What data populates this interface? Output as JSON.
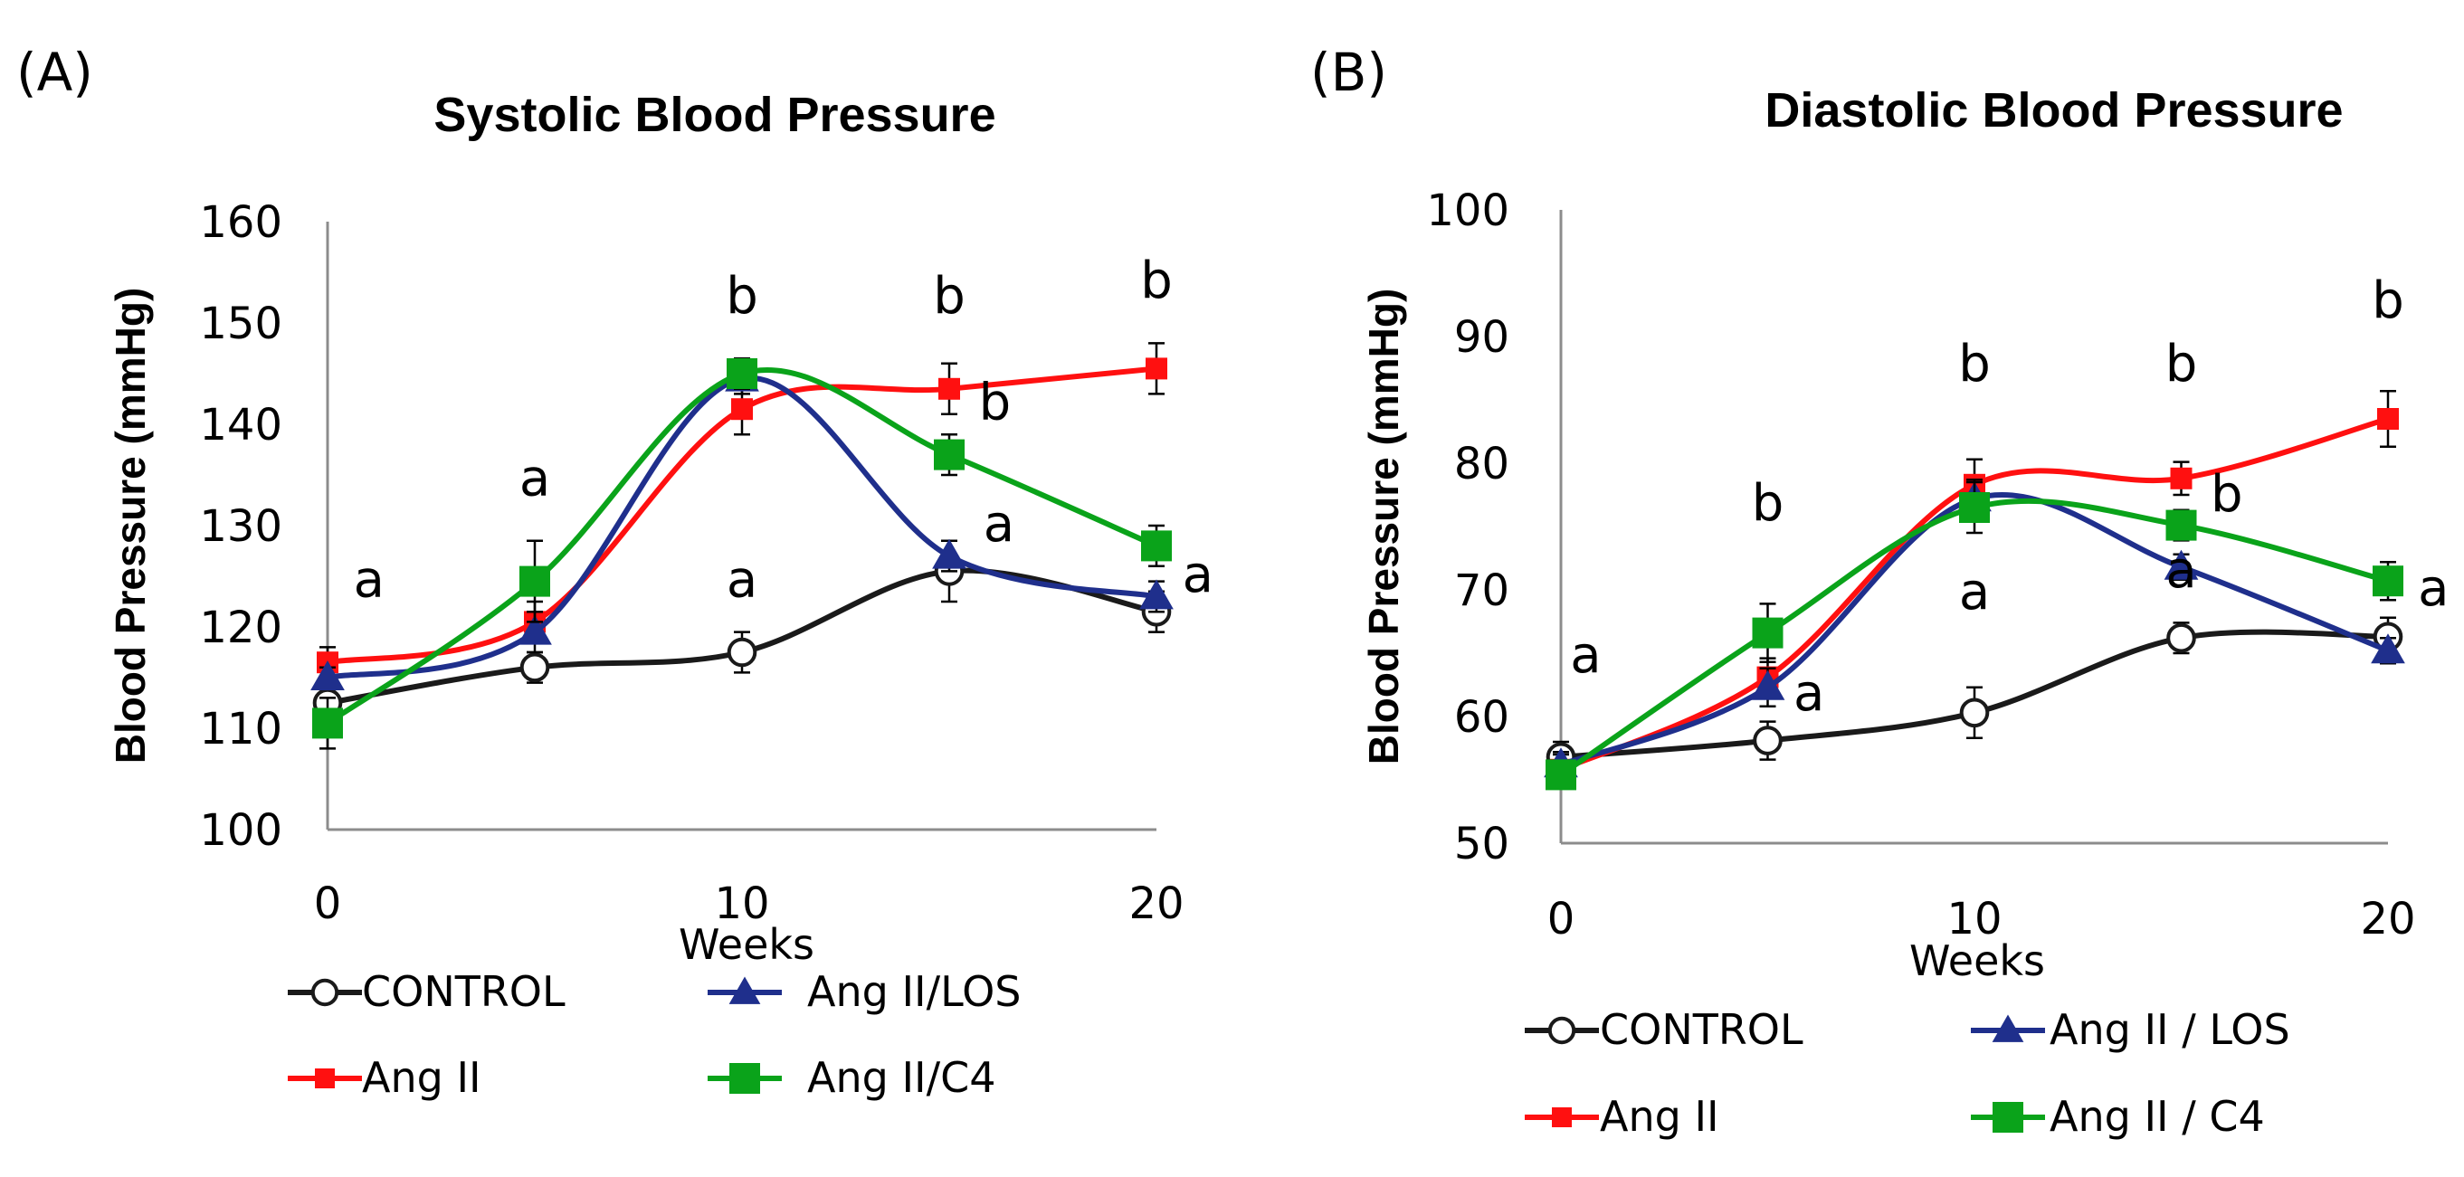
{
  "chart_data": [
    {
      "panel_label": "(A)",
      "type": "line",
      "title": "Systolic Blood Pressure",
      "xlabel": "Weeks",
      "ylabel": "Blood Pressure (mmHg)",
      "xlim": [
        0,
        20
      ],
      "ylim": [
        100,
        160
      ],
      "xticks": [
        0,
        10,
        20
      ],
      "yticks": [
        100,
        110,
        120,
        130,
        140,
        150,
        160
      ],
      "x": [
        0,
        5,
        10,
        15,
        20
      ],
      "series": [
        {
          "name": "CONTROL",
          "color": "#1a1a1a",
          "marker": "circle-open",
          "values": [
            112.5,
            116,
            117.5,
            125.5,
            121.5
          ],
          "errors": [
            1.5,
            1.5,
            2,
            3,
            2
          ]
        },
        {
          "name": "Ang II",
          "color": "#ff1010",
          "marker": "square",
          "values": [
            116.5,
            120.5,
            141.5,
            143.5,
            145.5
          ],
          "errors": [
            1.5,
            2,
            2.5,
            2.5,
            2.5
          ]
        },
        {
          "name": "Ang II/LOS",
          "color": "#1f2f8c",
          "marker": "triangle",
          "values": [
            115,
            119.5,
            144.5,
            127,
            123
          ],
          "errors": [
            1,
            2,
            1.5,
            1.5,
            1.5
          ]
        },
        {
          "name": "Ang II/C4",
          "color": "#0aa31a",
          "marker": "square",
          "values": [
            110.5,
            124.5,
            145,
            137,
            128
          ],
          "errors": [
            2.5,
            4,
            1.5,
            2,
            2
          ]
        }
      ],
      "annotations": [
        {
          "text": "a",
          "x": 1,
          "y": 123
        },
        {
          "text": "a",
          "x": 5,
          "y": 133
        },
        {
          "text": "b",
          "x": 10,
          "y": 151
        },
        {
          "text": "a",
          "x": 10,
          "y": 123
        },
        {
          "text": "b",
          "x": 15,
          "y": 151
        },
        {
          "text": "b",
          "x": 16.1,
          "y": 140.5
        },
        {
          "text": "a",
          "x": 16.2,
          "y": 128.5
        },
        {
          "text": "b",
          "x": 20,
          "y": 152.5
        },
        {
          "text": "a",
          "x": 21,
          "y": 123.5
        }
      ],
      "legend": [
        {
          "name": "CONTROL",
          "color": "#1a1a1a",
          "marker": "circle-open"
        },
        {
          "name": "Ang II/LOS",
          "color": "#1f2f8c",
          "marker": "triangle"
        },
        {
          "name": "Ang II",
          "color": "#ff1010",
          "marker": "square"
        },
        {
          "name": "Ang II/C4",
          "color": "#0aa31a",
          "marker": "square"
        }
      ]
    },
    {
      "panel_label": "(B)",
      "type": "line",
      "title": "Diastolic Blood Pressure",
      "xlabel": "Weeks",
      "ylabel": "Blood Pressure (mmHg)",
      "xlim": [
        0,
        20
      ],
      "ylim": [
        50,
        100
      ],
      "xticks": [
        0,
        10,
        20
      ],
      "yticks": [
        50,
        60,
        70,
        80,
        90,
        100
      ],
      "x": [
        0,
        5,
        10,
        15,
        20
      ],
      "series": [
        {
          "name": "CONTROL",
          "color": "#1a1a1a",
          "marker": "circle-open",
          "values": [
            56.8,
            58.1,
            60.3,
            66.2,
            66.3
          ],
          "errors": [
            1.2,
            1.5,
            2,
            1.2,
            1.5
          ]
        },
        {
          "name": "Ang II",
          "color": "#ff1010",
          "marker": "square",
          "values": [
            55.8,
            63.1,
            78.3,
            78.8,
            83.5
          ],
          "errors": [
            1.2,
            1.5,
            2,
            1.3,
            2.2
          ]
        },
        {
          "name": "Ang II / LOS",
          "color": "#1f2f8c",
          "marker": "triangle",
          "values": [
            56.2,
            62.3,
            77.2,
            71.8,
            65.2
          ],
          "errors": [
            1,
            1.5,
            1.5,
            1,
            1
          ]
        },
        {
          "name": "Ang II / C4",
          "color": "#0aa31a",
          "marker": "square",
          "values": [
            55.4,
            66.6,
            76.5,
            75.1,
            70.7
          ],
          "errors": [
            1,
            2.3,
            2,
            1.2,
            1.5
          ]
        }
      ],
      "annotations": [
        {
          "text": "a",
          "x": 0.6,
          "y": 63.5
        },
        {
          "text": "b",
          "x": 5,
          "y": 75.5
        },
        {
          "text": "a",
          "x": 6,
          "y": 60.5
        },
        {
          "text": "b",
          "x": 10,
          "y": 86.5
        },
        {
          "text": "a",
          "x": 10,
          "y": 68.5
        },
        {
          "text": "b",
          "x": 15,
          "y": 86.5
        },
        {
          "text": "b",
          "x": 16.1,
          "y": 76.2
        },
        {
          "text": "a",
          "x": 15,
          "y": 70.2
        },
        {
          "text": "b",
          "x": 20,
          "y": 91.5
        },
        {
          "text": "a",
          "x": 21.1,
          "y": 68.8
        }
      ],
      "legend": [
        {
          "name": "CONTROL",
          "color": "#1a1a1a",
          "marker": "circle-open"
        },
        {
          "name": "Ang II / LOS",
          "color": "#1f2f8c",
          "marker": "triangle"
        },
        {
          "name": "Ang II",
          "color": "#ff1010",
          "marker": "square"
        },
        {
          "name": "Ang II / C4",
          "color": "#0aa31a",
          "marker": "square"
        }
      ]
    }
  ]
}
